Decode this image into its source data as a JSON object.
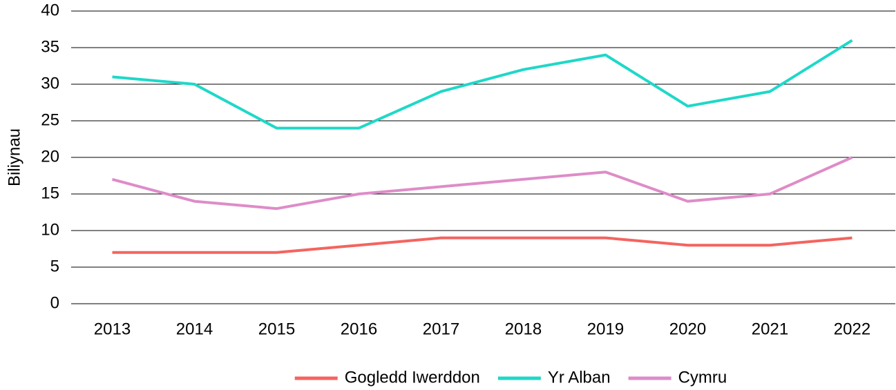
{
  "chart_data": {
    "type": "line",
    "y_label": "Biliynau",
    "categories": [
      "2013",
      "2014",
      "2015",
      "2016",
      "2017",
      "2018",
      "2019",
      "2020",
      "2021",
      "2022"
    ],
    "series": [
      {
        "name": "Gogledd Iwerddon",
        "color": "#f4645f",
        "values": [
          7,
          7,
          7,
          8,
          9,
          9,
          9,
          8,
          8,
          9
        ]
      },
      {
        "name": "Yr Alban",
        "color": "#1ed8c8",
        "values": [
          31,
          30,
          24,
          24,
          29,
          32,
          34,
          27,
          29,
          36
        ]
      },
      {
        "name": "Cymru",
        "color": "#de8cc8",
        "values": [
          17,
          14,
          13,
          15,
          16,
          17,
          18,
          14,
          15,
          20
        ]
      }
    ],
    "ylim": [
      0,
      40
    ],
    "yticks": [
      0,
      5,
      10,
      15,
      20,
      25,
      30,
      35,
      40
    ],
    "grid": true,
    "legend": "bottom"
  }
}
